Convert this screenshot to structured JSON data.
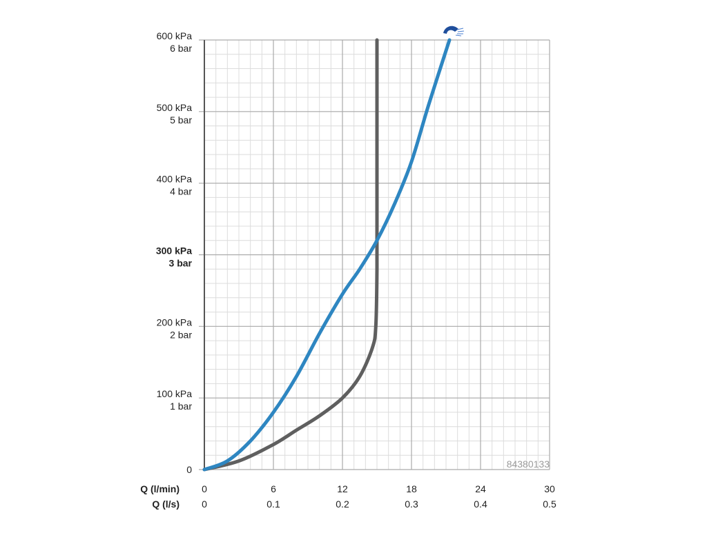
{
  "chart_data": {
    "type": "line",
    "title": "",
    "grid": true,
    "xlim": [
      0,
      30
    ],
    "ylim": [
      0,
      600
    ],
    "product_code": "84380133",
    "icon": "shower-head-icon",
    "y_ticks": [
      {
        "value": 0,
        "line1": "0",
        "line2": "",
        "bold": false
      },
      {
        "value": 100,
        "line1": "100 kPa",
        "line2": "1 bar",
        "bold": false
      },
      {
        "value": 200,
        "line1": "200 kPa",
        "line2": "2 bar",
        "bold": false
      },
      {
        "value": 300,
        "line1": "300 kPa",
        "line2": "3 bar",
        "bold": true
      },
      {
        "value": 400,
        "line1": "400 kPa",
        "line2": "4 bar",
        "bold": false
      },
      {
        "value": 500,
        "line1": "500 kPa",
        "line2": "5 bar",
        "bold": false
      },
      {
        "value": 600,
        "line1": "600 kPa",
        "line2": "6 bar",
        "bold": false
      }
    ],
    "x_ticks": [
      0,
      6,
      12,
      18,
      24,
      30
    ],
    "x_axis_rows": [
      {
        "label": "Q (l/min)",
        "ticks": [
          "0",
          "6",
          "12",
          "18",
          "24",
          "30"
        ]
      },
      {
        "label": "Q (l/s)",
        "ticks": [
          "0",
          "0.1",
          "0.2",
          "0.3",
          "0.4",
          "0.5"
        ]
      }
    ],
    "colors": {
      "series_blue": "#2e86c1",
      "series_gray": "#5f5f5f",
      "grid_major": "#aaaaaa",
      "grid_minor": "#dcdcdc",
      "icon": "#1f4e9c"
    },
    "series": [
      {
        "color": "#2e86c1",
        "x": [
          0,
          2,
          4,
          6,
          8,
          10,
          12,
          13.5,
          15,
          16.5,
          18,
          19.5,
          21.3
        ],
        "y": [
          0,
          12,
          40,
          80,
          130,
          190,
          245,
          280,
          320,
          370,
          430,
          510,
          600
        ]
      },
      {
        "color": "#5f5f5f",
        "x": [
          0,
          3,
          6,
          8,
          10,
          12,
          13.5,
          14.6,
          14.9,
          15.0,
          15.0,
          15.0
        ],
        "y": [
          0,
          12,
          35,
          55,
          75,
          100,
          130,
          170,
          200,
          280,
          400,
          600
        ]
      }
    ]
  }
}
